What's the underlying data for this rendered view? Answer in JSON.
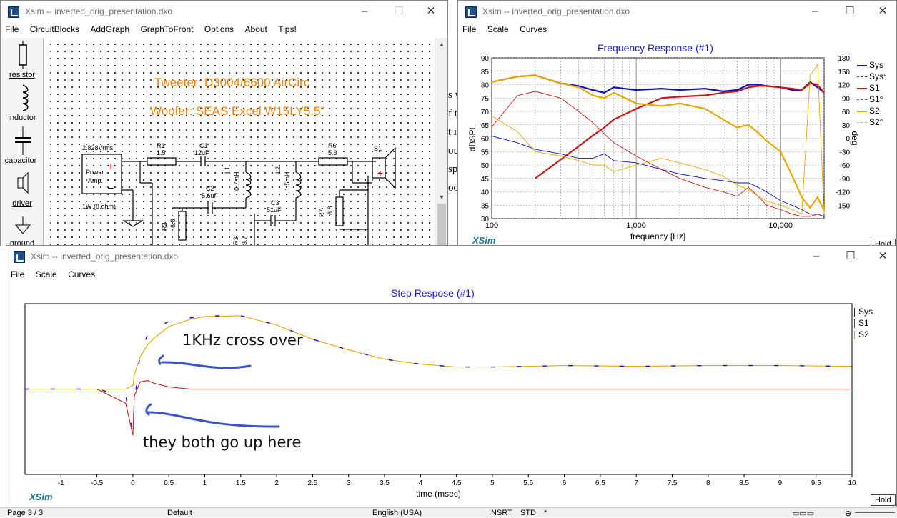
{
  "schematic_window": {
    "title": "Xsim -- inverted_orig_presentation.dxo",
    "menu": [
      "File",
      "CircuitBlocks",
      "AddGraph",
      "GraphToFront",
      "Options",
      "About",
      "Tips!"
    ],
    "palette": [
      "resistor",
      "inductor",
      "capacitor",
      "driver",
      "ground"
    ],
    "annotations": [
      "Tweeter: D3004/6600 AirCirc",
      "Woofer: SEAS Excel W15LY5.5\""
    ],
    "components": {
      "source_voltage": "2.828Vrms",
      "source_label_1": "Power",
      "source_label_2": "Amp.",
      "source_power": "1W (8 ohm)",
      "r1_name": "R1",
      "r1_value": "1.5",
      "c1_name": "C1",
      "c1_value": "12uF",
      "l1_name": "L1",
      "l1_value": "0.7mH",
      "l2_name": "L2",
      "l2_value": "1.5mH",
      "c2_name": "C2",
      "c2_value": "5.6uF",
      "c3_name": "C3",
      "c3_value": "51uF",
      "r2_name": "R2",
      "r2_value": "6.8",
      "r3_name": "R3",
      "r3_value": "3.7",
      "r6_name": "R6",
      "r6_value": "5.6",
      "r7_name": "R7",
      "r7_value": "6.8",
      "s1_name": "S1"
    }
  },
  "background_doc_fragments": [
    "s w",
    "f th",
    "t is",
    "ou",
    "sp",
    "oo"
  ],
  "freq_window": {
    "title": "Xsim -- inverted_orig_presentation.dxo",
    "menu": [
      "File",
      "Scale",
      "Curves"
    ],
    "plot_title": "Frequency Response (#1)",
    "hold_label": "Hold",
    "logo": "XSim",
    "legend": [
      {
        "name": "Sys",
        "color": "#1010c0",
        "dashed": false
      },
      {
        "name": "Sys°",
        "color": "#1010c0",
        "dashed": true
      },
      {
        "name": "S1",
        "color": "#c81818",
        "dashed": false
      },
      {
        "name": "S1°",
        "color": "#c81818",
        "dashed": true
      },
      {
        "name": "S2",
        "color": "#e8a800",
        "dashed": false
      },
      {
        "name": "S2°",
        "color": "#e8a800",
        "dashed": true
      }
    ]
  },
  "step_window": {
    "title": "Xsim -- inverted_orig_presentation.dxo",
    "menu": [
      "File",
      "Scale",
      "Curves"
    ],
    "plot_title": "Step Respose (#1)",
    "hold_label": "Hold",
    "logo": "XSim",
    "legend": [
      {
        "name": "Sys",
        "color": "#1010c0"
      },
      {
        "name": "S1",
        "color": "#c81818"
      },
      {
        "name": "S2",
        "color": "#e8a800"
      }
    ],
    "annotations": [
      "1KHz cross over",
      "they both go up here"
    ]
  },
  "status_bar": {
    "page": "Page 3 / 3",
    "style": "Default",
    "language": "English (USA)",
    "insert": "INSRT",
    "std": "STD",
    "star": "*"
  },
  "colors": {
    "sys": "#1010c0",
    "s1": "#c81818",
    "s2": "#e8a800",
    "title_blue": "#1c1ccc",
    "annotation_orange": "#f08010",
    "pen_blue": "#3a52d0"
  },
  "chart_data": [
    {
      "type": "line",
      "title": "Frequency Response (#1)",
      "xlabel": "frequency [Hz]",
      "ylabel": "dBSPL",
      "y2label": "deg",
      "xscale": "log",
      "xlim": [
        100,
        20000
      ],
      "ylim": [
        30,
        90
      ],
      "y2lim": [
        -180,
        180
      ],
      "x_ticks": [
        "100",
        "1,000",
        "10,000"
      ],
      "y_ticks": [
        30,
        35,
        40,
        45,
        50,
        55,
        60,
        65,
        70,
        75,
        80,
        85,
        90
      ],
      "y2_ticks": [
        180,
        150,
        120,
        90,
        60,
        30,
        0,
        -30,
        -60,
        -90,
        -120,
        -150
      ],
      "grid": true,
      "legend_position": "right",
      "x": [
        100,
        150,
        200,
        300,
        400,
        500,
        600,
        700,
        1000,
        1500,
        2000,
        3000,
        4000,
        5000,
        6000,
        7000,
        8000,
        10000,
        12000,
        14000,
        16000,
        18000,
        20000
      ],
      "series": [
        {
          "name": "Sys",
          "values": [
            81,
            83,
            83.5,
            80.5,
            79.5,
            78,
            77,
            79,
            78,
            78.5,
            78,
            78.5,
            77.5,
            78,
            80,
            80,
            79.5,
            79,
            78,
            78,
            81,
            79,
            77
          ]
        },
        {
          "name": "S1",
          "values": [
            null,
            null,
            45,
            52,
            57,
            61,
            64,
            67,
            71,
            75,
            75.5,
            76,
            77,
            77.5,
            79,
            79.5,
            79.5,
            79,
            78.5,
            78,
            80.5,
            80,
            77
          ]
        },
        {
          "name": "S2",
          "values": [
            81,
            83,
            83.5,
            80.5,
            79,
            76,
            75,
            77,
            73,
            72,
            73,
            71,
            67,
            64,
            65,
            62,
            59,
            55,
            46,
            38,
            34,
            38,
            33
          ]
        },
        {
          "name": "Sys°",
          "values": [
            5,
            -10,
            -25,
            -35,
            -45,
            -45,
            -35,
            -50,
            -55,
            -70,
            -80,
            -90,
            -95,
            -100,
            -100,
            -110,
            -120,
            -140,
            -150,
            -160,
            -170,
            -170,
            -175
          ]
        },
        {
          "name": "S1°",
          "values": [
            25,
            95,
            105,
            90,
            60,
            35,
            10,
            -10,
            -40,
            -70,
            -90,
            -110,
            -120,
            -130,
            -110,
            -130,
            -150,
            -160,
            -170,
            -175,
            -175,
            -170,
            -175
          ]
        },
        {
          "name": "S2°",
          "values": [
            50,
            15,
            -30,
            -40,
            -50,
            -60,
            -60,
            -75,
            -60,
            -45,
            -55,
            -70,
            -85,
            -105,
            -115,
            -130,
            -140,
            -150,
            -160,
            -170,
            140,
            165,
            -170
          ]
        }
      ]
    },
    {
      "type": "line",
      "title": "Step Respose (#1)",
      "xlabel": "time (msec)",
      "ylabel": "",
      "xlim": [
        -1.5,
        10
      ],
      "x_ticks": [
        "-1",
        "-0.5",
        "0",
        "0.5",
        "1",
        "1.5",
        "2",
        "2.5",
        "3",
        "3.5",
        "4",
        "4.5",
        "5",
        "5.5",
        "6",
        "6.5",
        "7",
        "7.5",
        "8",
        "8.5",
        "9",
        "9.5",
        "10"
      ],
      "ylim": [
        -1.2,
        1.2
      ],
      "grid": false,
      "legend_position": "right",
      "x": [
        -1.5,
        -0.5,
        -0.1,
        0,
        0.02,
        0.1,
        0.2,
        0.3,
        0.5,
        0.8,
        1.0,
        1.5,
        2.0,
        2.5,
        3.0,
        3.5,
        4.0,
        4.5,
        5.0,
        6.0,
        7.0,
        8.0,
        9.0,
        10.0
      ],
      "series": [
        {
          "name": "Sys",
          "values": [
            0,
            0,
            -0.1,
            -0.6,
            -0.2,
            0.5,
            0.75,
            0.85,
            0.95,
            1.0,
            1.03,
            1.03,
            0.9,
            0.7,
            0.55,
            0.42,
            0.35,
            0.31,
            0.31,
            0.33,
            0.32,
            0.33,
            0.33,
            0.32
          ]
        },
        {
          "name": "S1",
          "values": [
            0,
            0,
            -0.2,
            -0.65,
            -0.1,
            0.1,
            0.12,
            0.08,
            0.03,
            0,
            0,
            0,
            0,
            0,
            0,
            0,
            0,
            0,
            0,
            0,
            0,
            0,
            0,
            0
          ]
        },
        {
          "name": "S2",
          "values": [
            0,
            0,
            0,
            0.05,
            0.2,
            0.45,
            0.62,
            0.72,
            0.88,
            0.98,
            1.02,
            1.03,
            0.9,
            0.7,
            0.55,
            0.42,
            0.35,
            0.31,
            0.31,
            0.33,
            0.32,
            0.33,
            0.33,
            0.32
          ]
        }
      ]
    }
  ]
}
